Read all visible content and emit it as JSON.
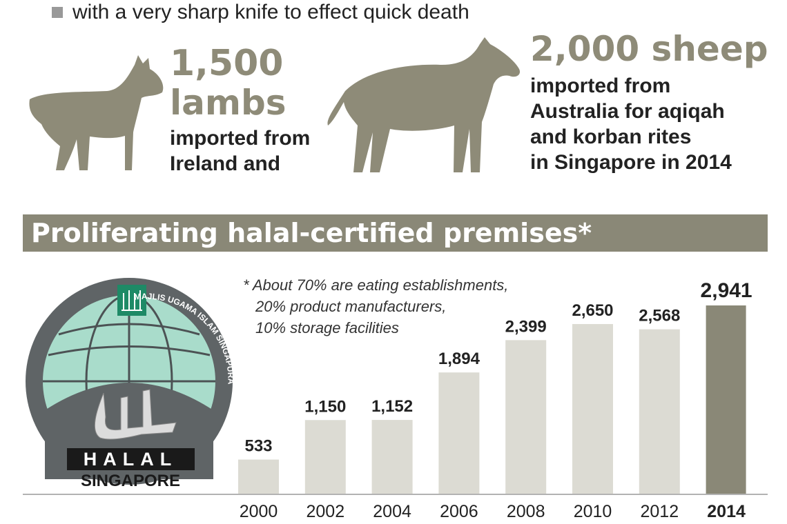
{
  "intro": {
    "bullet_text": "with a very sharp knife to effect quick death"
  },
  "lambs": {
    "headline_number": "1,500",
    "headline_unit": "lambs",
    "lines": [
      "imported from",
      "Ireland and"
    ]
  },
  "sheep": {
    "headline": "2,000 sheep",
    "lines": [
      "imported from",
      "Australia for aqiqah",
      "and korban rites",
      "in Singapore in 2014"
    ]
  },
  "section": {
    "title": "Proliferating halal-certified premises*"
  },
  "footnote": {
    "lines": [
      "* About 70% are eating establishments,",
      "20% product manufacturers,",
      "10% storage facilities"
    ]
  },
  "logo": {
    "arc_text": "MAJLIS UGAMA ISLAM SINGAPURA",
    "word1": "HALAL",
    "word2": "SINGAPORE"
  },
  "colors": {
    "accent": "#8a8877",
    "bar": "#dcdbd3",
    "highlight_bar": "#8a8877",
    "animal": "#8e8b78"
  },
  "chart_data": {
    "type": "bar",
    "title": "Proliferating halal-certified premises*",
    "categories": [
      "2000",
      "2002",
      "2004",
      "2006",
      "2008",
      "2010",
      "2012",
      "2014"
    ],
    "values": [
      533,
      1150,
      1152,
      1894,
      2399,
      2650,
      2568,
      2941
    ],
    "value_labels": [
      "533",
      "1,150",
      "1,152",
      "1,894",
      "2,399",
      "2,650",
      "2,568",
      "2,941"
    ],
    "highlight": "2014",
    "xlabel": "",
    "ylabel": "",
    "ylim": [
      0,
      2941
    ],
    "grid": false
  }
}
